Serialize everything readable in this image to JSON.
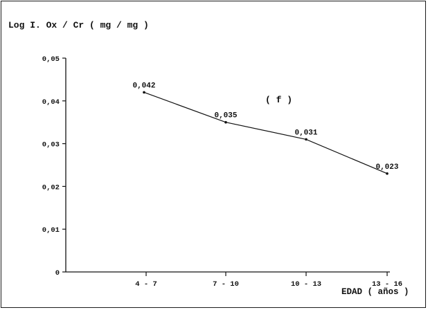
{
  "chart_data": {
    "type": "line",
    "title": "Log I. Ox / Cr ( mg / mg )",
    "xlabel": "EDAD ( años )",
    "ylabel": "",
    "categories": [
      "4 - 7",
      "7 - 10",
      "10 - 13",
      "13 - 16"
    ],
    "series": [
      {
        "values": [
          0.042,
          0.035,
          0.031,
          0.023
        ]
      }
    ],
    "data_labels": [
      "0,042",
      "0,035",
      "0,031",
      "0,023"
    ],
    "y_ticks": [
      {
        "value": 0,
        "label": "0"
      },
      {
        "value": 0.01,
        "label": "0,01"
      },
      {
        "value": 0.02,
        "label": "0,02"
      },
      {
        "value": 0.03,
        "label": "0,03"
      },
      {
        "value": 0.04,
        "label": "0,04"
      },
      {
        "value": 0.05,
        "label": "0,05"
      }
    ],
    "ylim": [
      0,
      0.05
    ],
    "grid": false,
    "annotation": "( f )",
    "line_color": "#111111"
  }
}
